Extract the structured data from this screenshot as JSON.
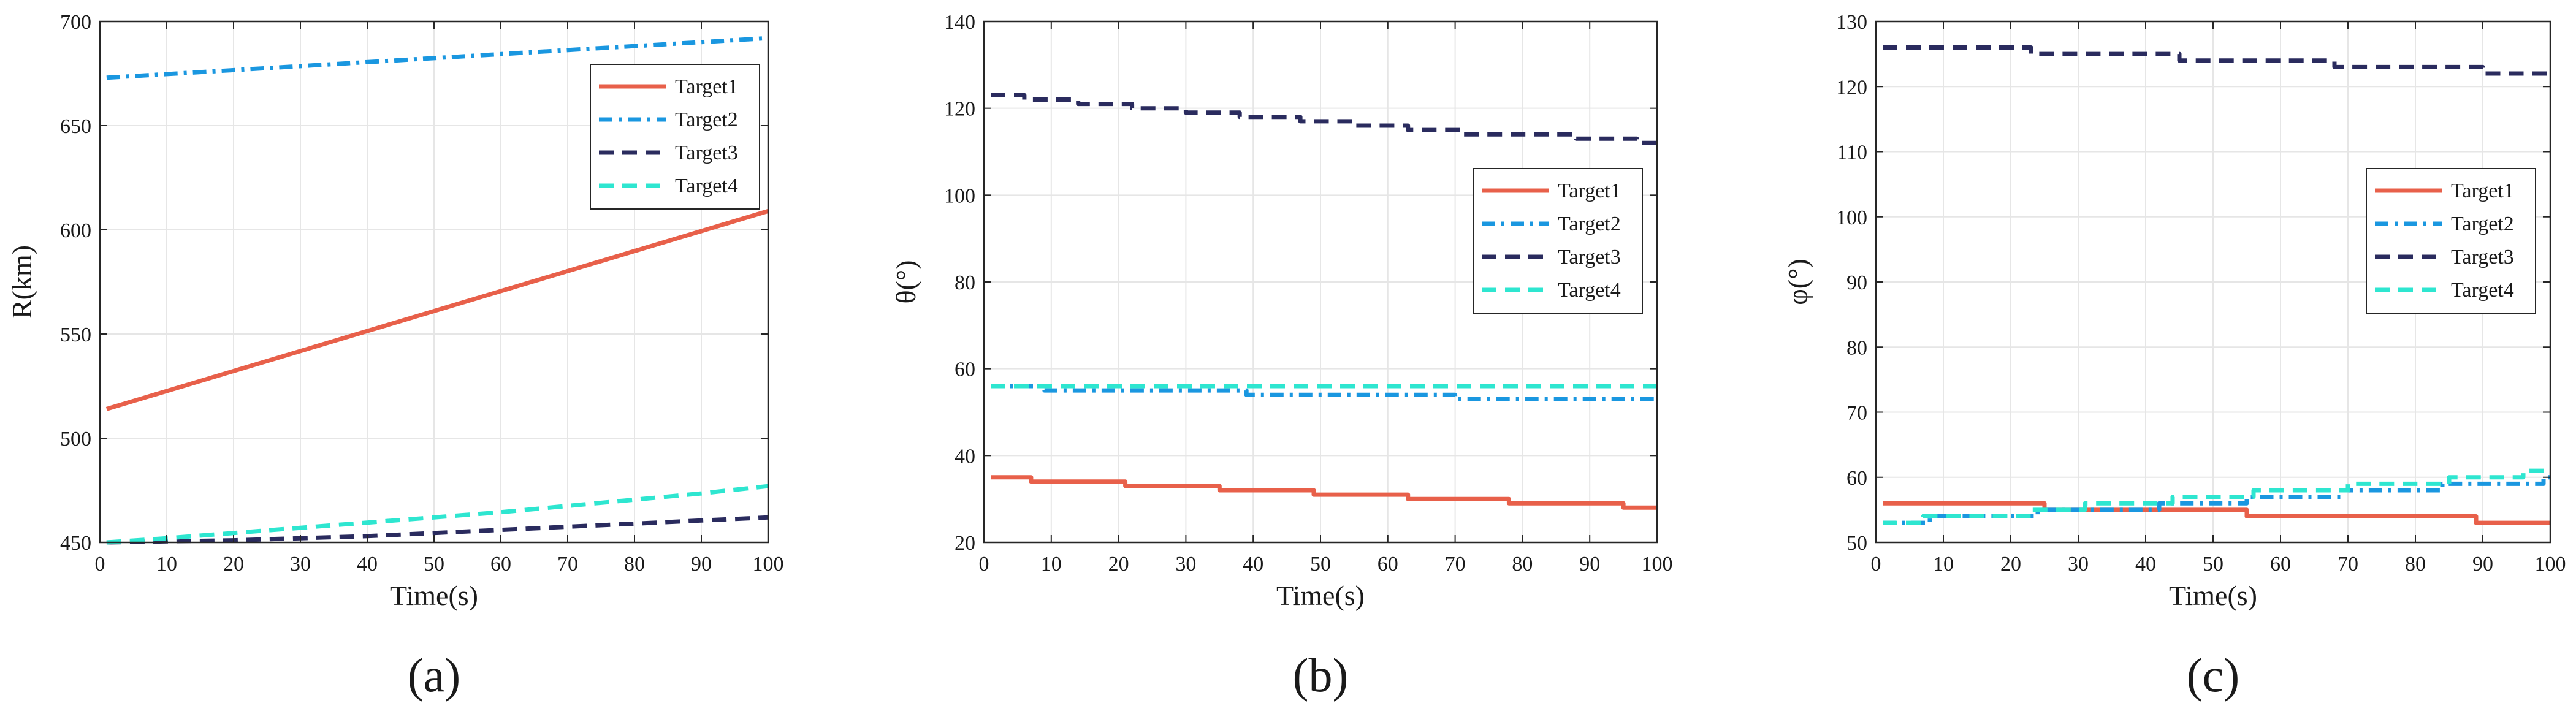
{
  "colors": {
    "Target1": "#e8604a",
    "Target2": "#1a97e0",
    "Target3": "#2a2b5e",
    "Target4": "#2ee6d0",
    "grid": "#e6e6e6",
    "axis": "#262626"
  },
  "chart_data": [
    {
      "type": "line",
      "caption": "(a)",
      "xlabel": "Time(s)",
      "ylabel": "R(km)",
      "xlim": [
        0,
        100
      ],
      "ylim": [
        450,
        700
      ],
      "xticks": [
        0,
        10,
        20,
        30,
        40,
        50,
        60,
        70,
        80,
        90,
        100
      ],
      "yticks": [
        450,
        500,
        550,
        600,
        650,
        700
      ],
      "grid": true,
      "legend_position": "top-right",
      "series": [
        {
          "name": "Target1",
          "style": "solid",
          "x": [
            1,
            100
          ],
          "y": [
            514,
            609
          ]
        },
        {
          "name": "Target2",
          "style": "dashdot",
          "x": [
            1,
            100
          ],
          "y": [
            673,
            692
          ]
        },
        {
          "name": "Target3",
          "style": "dashed",
          "x": [
            1,
            10,
            20,
            30,
            40,
            50,
            60,
            70,
            80,
            90,
            100
          ],
          "y": [
            450,
            450.5,
            451,
            452,
            453,
            454.5,
            456,
            457.5,
            459,
            460.5,
            462
          ]
        },
        {
          "name": "Target4",
          "style": "dashed",
          "x": [
            1,
            10,
            20,
            30,
            40,
            50,
            60,
            70,
            80,
            90,
            100
          ],
          "y": [
            450,
            452,
            454.5,
            457,
            459.5,
            462,
            464.5,
            467.5,
            470.5,
            473.5,
            477
          ]
        }
      ]
    },
    {
      "type": "line",
      "caption": "(b)",
      "xlabel": "Time(s)",
      "ylabel": "θ(°)",
      "xlim": [
        0,
        100
      ],
      "ylim": [
        20,
        140
      ],
      "xticks": [
        0,
        10,
        20,
        30,
        40,
        50,
        60,
        70,
        80,
        90,
        100
      ],
      "yticks": [
        20,
        40,
        60,
        80,
        100,
        120,
        140
      ],
      "grid": true,
      "legend_position": "center-right",
      "series": [
        {
          "name": "Target1",
          "style": "solid",
          "x": [
            1,
            7,
            7,
            21,
            21,
            35,
            35,
            49,
            49,
            63,
            63,
            78,
            78,
            95,
            95,
            100
          ],
          "y": [
            35,
            35,
            34,
            34,
            33,
            33,
            32,
            32,
            31,
            31,
            30,
            30,
            29,
            29,
            28,
            28
          ]
        },
        {
          "name": "Target2",
          "style": "dashdot",
          "x": [
            1,
            9,
            9,
            39,
            39,
            70,
            70,
            100
          ],
          "y": [
            56,
            56,
            55,
            55,
            54,
            54,
            53,
            53
          ]
        },
        {
          "name": "Target3",
          "style": "dashed",
          "x": [
            1,
            6,
            6,
            14,
            14,
            22,
            22,
            30,
            30,
            38,
            38,
            47,
            47,
            55,
            55,
            63,
            63,
            71,
            71,
            79,
            79,
            88,
            88,
            97,
            97,
            100
          ],
          "y": [
            123,
            123,
            122,
            122,
            121,
            121,
            120,
            120,
            119,
            119,
            118,
            118,
            117,
            117,
            116,
            116,
            115,
            115,
            114,
            114,
            114,
            114,
            113,
            113,
            112,
            112
          ]
        },
        {
          "name": "Target4",
          "style": "dashed",
          "x": [
            1,
            100
          ],
          "y": [
            56,
            56
          ]
        }
      ]
    },
    {
      "type": "line",
      "caption": "(c)",
      "xlabel": "Time(s)",
      "ylabel": "φ(°)",
      "xlim": [
        0,
        100
      ],
      "ylim": [
        50,
        130
      ],
      "xticks": [
        0,
        10,
        20,
        30,
        40,
        50,
        60,
        70,
        80,
        90,
        100
      ],
      "yticks": [
        50,
        60,
        70,
        80,
        90,
        100,
        110,
        120,
        130
      ],
      "grid": true,
      "legend_position": "center-right",
      "series": [
        {
          "name": "Target1",
          "style": "solid",
          "x": [
            1,
            25,
            25,
            55,
            55,
            89,
            89,
            100
          ],
          "y": [
            56,
            56,
            55,
            55,
            54,
            54,
            53,
            53
          ]
        },
        {
          "name": "Target2",
          "style": "dashdot",
          "x": [
            1,
            8,
            8,
            24,
            24,
            42,
            42,
            55,
            55,
            69,
            69,
            84,
            84,
            99,
            99,
            100
          ],
          "y": [
            53,
            53,
            54,
            54,
            55,
            55,
            56,
            56,
            57,
            57,
            58,
            58,
            59,
            59,
            60,
            60
          ]
        },
        {
          "name": "Target3",
          "style": "dashed",
          "x": [
            1,
            23,
            23,
            45,
            45,
            68,
            68,
            90,
            90,
            100
          ],
          "y": [
            126,
            126,
            125,
            125,
            124,
            124,
            123,
            123,
            122,
            122
          ]
        },
        {
          "name": "Target4",
          "style": "dashed",
          "x": [
            1,
            7,
            7,
            23,
            23,
            31,
            31,
            44,
            44,
            56,
            56,
            70,
            70,
            85,
            85,
            96,
            96,
            100
          ],
          "y": [
            53,
            53,
            54,
            54,
            55,
            55,
            56,
            56,
            57,
            57,
            58,
            58,
            59,
            59,
            60,
            60,
            61,
            61
          ]
        }
      ]
    }
  ]
}
